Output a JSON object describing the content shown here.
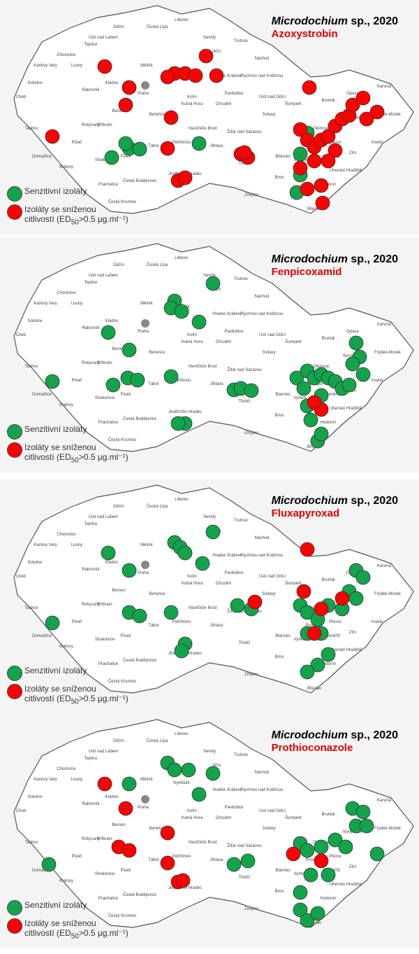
{
  "colors": {
    "sensitive": "#13a34a",
    "reduced": "#ff0000",
    "map_fill": "#ffffff",
    "border": "#555555"
  },
  "legend": {
    "sensitive": "Senzitivní izoláty",
    "reduced_line1": "Izoláty se sníženou",
    "reduced_line2": "citlivostí (ED",
    "reduced_sub": "50",
    "reduced_tail": ">0.5 µg.ml⁻¹)"
  },
  "cities": [
    "Cheb",
    "Sokolov",
    "Karlovy Vary",
    "Chomutov",
    "Louny",
    "Teplice",
    "Ústí nad Labem",
    "Děčín",
    "Česká Lípa",
    "Liberec",
    "Semily",
    "Jičín",
    "Trutnov",
    "Náchod",
    "Mělník",
    "Nymburk",
    "Kladno",
    "Rakovník",
    "Praha",
    "Beroun",
    "Kolín",
    "Kutná Hora",
    "Hradec Králové",
    "Pardubice",
    "Chrudim",
    "Rychnov nad Kněžnou",
    "Ústí nad Orlicí",
    "Šumperk",
    "Bruntál",
    "Opava",
    "Karviná",
    "Frýdek-Místek",
    "Nový Jičín",
    "Olomouc",
    "Přerov",
    "Vsetín",
    "Zlín",
    "Kroměříž",
    "Uherské Hradiště",
    "Hodonín",
    "Břeclav",
    "Znojmo",
    "Brno",
    "Vyškov",
    "Blansko",
    "Prostějov",
    "Svitavy",
    "Žďár nad Sázavou",
    "Jihlava",
    "Třebíč",
    "Havlíčkův Brod",
    "Pelhřimov",
    "Tábor",
    "Benešov",
    "Příbram",
    "Písek",
    "Strakonice",
    "Klatovy",
    "Domažlice",
    "Tachov",
    "Plzeň",
    "Rokycany",
    "Prachatice",
    "České Budějovice",
    "Český Krumlov",
    "Jindřichův Hradec"
  ],
  "panels": [
    {
      "genus": "Microdochium",
      "suffix": " sp., 2020",
      "fungicide": "Azoxystrobin"
    },
    {
      "genus": "Microdochium",
      "suffix": " sp., 2020",
      "fungicide": "Fenpicoxamid"
    },
    {
      "genus": "Microdochium",
      "suffix": " sp., 2020",
      "fungicide": "Fluxapyroxad"
    },
    {
      "genus": "Microdochium",
      "suffix": " sp., 2020",
      "fungicide": "Prothioconazole"
    }
  ]
}
